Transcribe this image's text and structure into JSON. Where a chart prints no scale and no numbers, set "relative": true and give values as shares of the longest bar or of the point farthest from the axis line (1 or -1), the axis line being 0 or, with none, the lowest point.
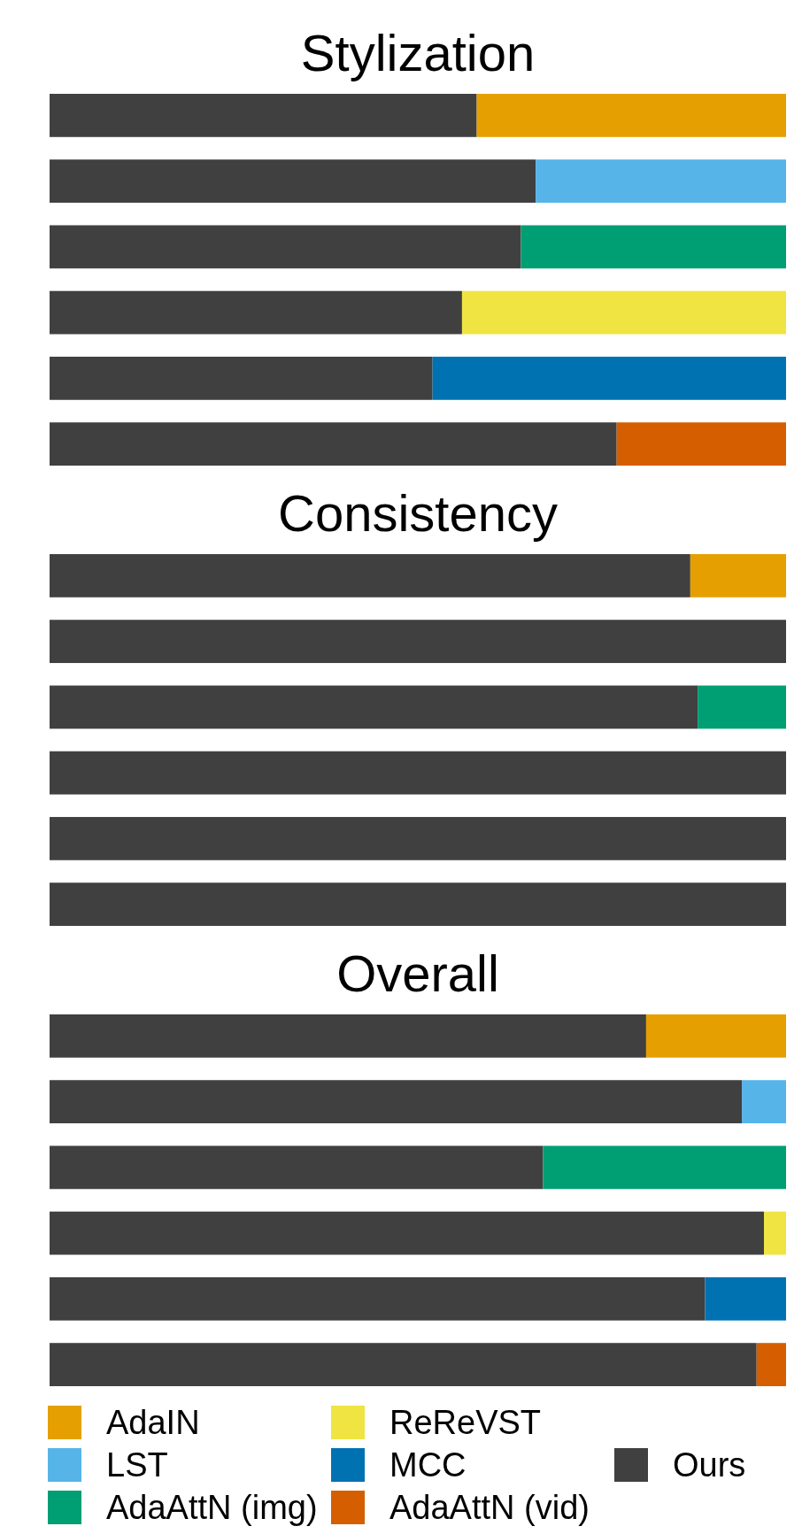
{
  "chart_data": [
    {
      "type": "bar",
      "title": "Stylization",
      "orientation": "horizontal",
      "stacked": true,
      "relative": true,
      "categories": [
        null,
        null,
        null,
        null,
        null,
        null
      ],
      "series": [
        {
          "color": "#404040",
          "values": [
            0.58,
            0.66,
            0.64,
            0.56,
            0.52,
            0.77
          ]
        },
        {
          "color": "#e69f00",
          "values": [
            0.42,
            null,
            null,
            null,
            null,
            null
          ]
        },
        {
          "color": "#56b4e9",
          "values": [
            null,
            0.34,
            null,
            null,
            null,
            null
          ]
        },
        {
          "color": "#009e73",
          "values": [
            null,
            null,
            0.36,
            null,
            null,
            null
          ]
        },
        {
          "color": "#f0e442",
          "values": [
            null,
            null,
            null,
            0.44,
            null,
            null
          ]
        },
        {
          "color": "#0072b2",
          "values": [
            null,
            null,
            null,
            null,
            0.48,
            null
          ]
        },
        {
          "color": "#d55e00",
          "values": [
            null,
            null,
            null,
            null,
            null,
            0.23
          ]
        }
      ]
    },
    {
      "type": "bar",
      "title": "Consistency",
      "orientation": "horizontal",
      "stacked": true,
      "relative": true,
      "categories": [
        null,
        null,
        null,
        null,
        null,
        null
      ],
      "series": [
        {
          "color": "#404040",
          "values": [
            0.87,
            1,
            0.88,
            1,
            1,
            1
          ]
        },
        {
          "color": "#e69f00",
          "values": [
            0.13,
            null,
            null,
            null,
            null,
            null
          ]
        },
        {
          "color": "#009e73",
          "values": [
            null,
            null,
            0.12,
            null,
            null,
            null
          ]
        }
      ]
    },
    {
      "type": "bar",
      "title": "Overall",
      "orientation": "horizontal",
      "stacked": true,
      "relative": true,
      "legend": "bottom",
      "categories": [
        null,
        null,
        null,
        null,
        null,
        null
      ],
      "series": [
        {
          "name": "Ours",
          "color": "#404040",
          "values": [
            0.81,
            0.94,
            0.67,
            0.97,
            0.89,
            0.96
          ]
        },
        {
          "name": "AdaIN",
          "color": "#e69f00",
          "values": [
            0.19,
            null,
            null,
            null,
            null,
            null
          ]
        },
        {
          "name": "LST",
          "color": "#56b4e9",
          "values": [
            null,
            0.06,
            null,
            null,
            null,
            null
          ]
        },
        {
          "name": "AdaAttN (img)",
          "color": "#009e73",
          "values": [
            null,
            null,
            0.33,
            null,
            null,
            null
          ]
        },
        {
          "name": "ReReVST",
          "color": "#f0e442",
          "values": [
            null,
            null,
            null,
            0.03,
            null,
            null
          ]
        },
        {
          "name": "MCC",
          "color": "#0072b2",
          "values": [
            null,
            null,
            null,
            null,
            0.11,
            null
          ]
        },
        {
          "name": "AdaAttN (vid)",
          "color": "#d55e00",
          "values": [
            null,
            null,
            null,
            null,
            null,
            0.04
          ]
        }
      ]
    }
  ]
}
